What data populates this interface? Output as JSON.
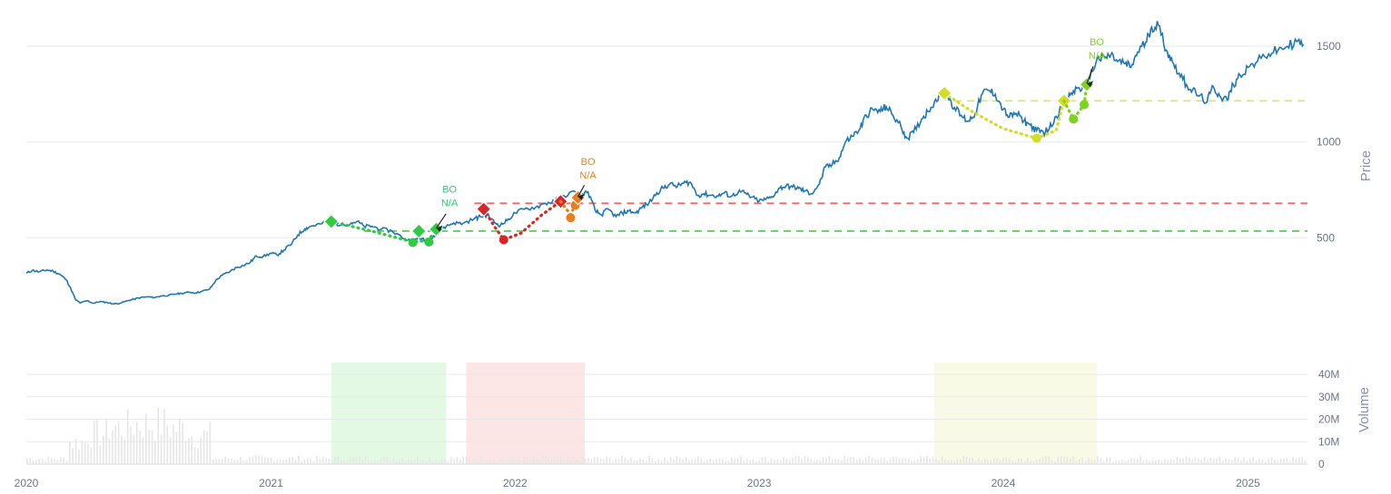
{
  "chart_data": {
    "type": "line",
    "price_axis": {
      "label": "Price",
      "ticks": [
        500,
        1000,
        1500
      ],
      "ylim": [
        0,
        1800
      ]
    },
    "volume_axis": {
      "label": "Volume",
      "ticks": [
        {
          "value": 0,
          "label": "0"
        },
        {
          "value": 10000000,
          "label": "10M"
        },
        {
          "value": 20000000,
          "label": "20M"
        },
        {
          "value": 30000000,
          "label": "30M"
        },
        {
          "value": 40000000,
          "label": "40M"
        }
      ],
      "ylim": [
        0,
        40000000
      ]
    },
    "x_axis": {
      "ticks": [
        "2020",
        "2021",
        "2022",
        "2023",
        "2024",
        "2025"
      ],
      "xlim": [
        "2020-01-01",
        "2025-03-31"
      ]
    },
    "grid": true,
    "colors": {
      "price_line": "#1f77b4",
      "green": "#2ecc40",
      "teal": "#2ecc71",
      "red": "#d62728",
      "orange": "#e67e22",
      "yellow": "#d4dc2a",
      "lime": "#7ed321",
      "volume_bar": "#e6e6e6"
    },
    "price_series": [
      [
        "2020-01-01",
        315
      ],
      [
        "2020-01-10",
        330
      ],
      [
        "2020-01-20",
        322
      ],
      [
        "2020-02-01",
        332
      ],
      [
        "2020-02-10",
        326
      ],
      [
        "2020-02-20",
        310
      ],
      [
        "2020-03-01",
        280
      ],
      [
        "2020-03-08",
        230
      ],
      [
        "2020-03-15",
        175
      ],
      [
        "2020-03-22",
        160
      ],
      [
        "2020-04-01",
        172
      ],
      [
        "2020-04-10",
        158
      ],
      [
        "2020-04-20",
        167
      ],
      [
        "2020-05-01",
        162
      ],
      [
        "2020-05-10",
        155
      ],
      [
        "2020-05-20",
        158
      ],
      [
        "2020-06-01",
        172
      ],
      [
        "2020-06-10",
        180
      ],
      [
        "2020-06-20",
        188
      ],
      [
        "2020-07-01",
        192
      ],
      [
        "2020-07-10",
        188
      ],
      [
        "2020-07-20",
        196
      ],
      [
        "2020-08-01",
        200
      ],
      [
        "2020-08-10",
        206
      ],
      [
        "2020-08-20",
        210
      ],
      [
        "2020-09-01",
        216
      ],
      [
        "2020-09-10",
        212
      ],
      [
        "2020-09-20",
        221
      ],
      [
        "2020-10-01",
        232
      ],
      [
        "2020-10-10",
        275
      ],
      [
        "2020-10-20",
        305
      ],
      [
        "2020-11-01",
        325
      ],
      [
        "2020-11-10",
        345
      ],
      [
        "2020-11-20",
        355
      ],
      [
        "2020-12-01",
        372
      ],
      [
        "2020-12-10",
        405
      ],
      [
        "2020-12-20",
        402
      ],
      [
        "2021-01-01",
        420
      ],
      [
        "2021-01-10",
        410
      ],
      [
        "2021-01-20",
        435
      ],
      [
        "2021-02-01",
        470
      ],
      [
        "2021-02-10",
        515
      ],
      [
        "2021-02-20",
        545
      ],
      [
        "2021-03-01",
        560
      ],
      [
        "2021-03-15",
        572
      ],
      [
        "2021-04-01",
        585
      ],
      [
        "2021-04-15",
        565
      ],
      [
        "2021-05-01",
        578
      ],
      [
        "2021-05-10",
        585
      ],
      [
        "2021-05-20",
        560
      ],
      [
        "2021-06-01",
        560
      ],
      [
        "2021-06-15",
        545
      ],
      [
        "2021-07-01",
        535
      ],
      [
        "2021-07-15",
        505
      ],
      [
        "2021-08-01",
        478
      ],
      [
        "2021-08-10",
        500
      ],
      [
        "2021-08-20",
        485
      ],
      [
        "2021-09-01",
        510
      ],
      [
        "2021-09-10",
        540
      ],
      [
        "2021-09-20",
        560
      ],
      [
        "2021-10-01",
        578
      ],
      [
        "2021-10-15",
        575
      ],
      [
        "2021-11-01",
        600
      ],
      [
        "2021-11-10",
        610
      ],
      [
        "2021-11-20",
        620
      ],
      [
        "2021-12-01",
        580
      ],
      [
        "2021-12-10",
        565
      ],
      [
        "2021-12-20",
        590
      ],
      [
        "2022-01-01",
        630
      ],
      [
        "2022-01-15",
        650
      ],
      [
        "2022-02-01",
        660
      ],
      [
        "2022-02-15",
        680
      ],
      [
        "2022-03-01",
        690
      ],
      [
        "2022-03-15",
        720
      ],
      [
        "2022-04-01",
        740
      ],
      [
        "2022-04-10",
        720
      ],
      [
        "2022-04-20",
        740
      ],
      [
        "2022-05-01",
        640
      ],
      [
        "2022-05-10",
        620
      ],
      [
        "2022-05-20",
        650
      ],
      [
        "2022-06-01",
        610
      ],
      [
        "2022-06-10",
        630
      ],
      [
        "2022-06-20",
        640
      ],
      [
        "2022-07-01",
        630
      ],
      [
        "2022-07-10",
        660
      ],
      [
        "2022-07-20",
        680
      ],
      [
        "2022-08-01",
        735
      ],
      [
        "2022-08-10",
        760
      ],
      [
        "2022-08-20",
        780
      ],
      [
        "2022-09-01",
        770
      ],
      [
        "2022-09-10",
        785
      ],
      [
        "2022-09-20",
        790
      ],
      [
        "2022-10-01",
        720
      ],
      [
        "2022-10-10",
        730
      ],
      [
        "2022-10-20",
        722
      ],
      [
        "2022-11-01",
        718
      ],
      [
        "2022-11-10",
        735
      ],
      [
        "2022-11-20",
        715
      ],
      [
        "2022-12-01",
        740
      ],
      [
        "2022-12-10",
        735
      ],
      [
        "2022-12-20",
        712
      ],
      [
        "2023-01-01",
        692
      ],
      [
        "2023-01-10",
        700
      ],
      [
        "2023-01-20",
        715
      ],
      [
        "2023-02-01",
        760
      ],
      [
        "2023-02-10",
        770
      ],
      [
        "2023-02-20",
        765
      ],
      [
        "2023-03-01",
        758
      ],
      [
        "2023-03-10",
        745
      ],
      [
        "2023-03-20",
        730
      ],
      [
        "2023-04-01",
        780
      ],
      [
        "2023-04-10",
        870
      ],
      [
        "2023-04-20",
        880
      ],
      [
        "2023-05-01",
        920
      ],
      [
        "2023-05-10",
        1000
      ],
      [
        "2023-05-20",
        1030
      ],
      [
        "2023-06-01",
        1070
      ],
      [
        "2023-06-10",
        1140
      ],
      [
        "2023-06-20",
        1170
      ],
      [
        "2023-07-01",
        1160
      ],
      [
        "2023-07-10",
        1185
      ],
      [
        "2023-07-20",
        1140
      ],
      [
        "2023-08-01",
        1080
      ],
      [
        "2023-08-10",
        1020
      ],
      [
        "2023-08-20",
        1050
      ],
      [
        "2023-09-01",
        1120
      ],
      [
        "2023-09-10",
        1160
      ],
      [
        "2023-09-20",
        1210
      ],
      [
        "2023-10-01",
        1250
      ],
      [
        "2023-10-10",
        1240
      ],
      [
        "2023-10-20",
        1180
      ],
      [
        "2023-11-01",
        1130
      ],
      [
        "2023-11-10",
        1110
      ],
      [
        "2023-11-20",
        1150
      ],
      [
        "2023-12-01",
        1255
      ],
      [
        "2023-12-10",
        1270
      ],
      [
        "2023-12-20",
        1250
      ],
      [
        "2024-01-01",
        1170
      ],
      [
        "2024-01-10",
        1130
      ],
      [
        "2024-01-20",
        1150
      ],
      [
        "2024-02-01",
        1110
      ],
      [
        "2024-02-10",
        1090
      ],
      [
        "2024-02-20",
        1060
      ],
      [
        "2024-03-01",
        1050
      ],
      [
        "2024-03-10",
        1070
      ],
      [
        "2024-03-20",
        1135
      ],
      [
        "2024-04-01",
        1200
      ],
      [
        "2024-04-10",
        1245
      ],
      [
        "2024-04-20",
        1280
      ],
      [
        "2024-05-01",
        1285
      ],
      [
        "2024-05-10",
        1340
      ],
      [
        "2024-05-20",
        1430
      ],
      [
        "2024-06-01",
        1440
      ],
      [
        "2024-06-10",
        1455
      ],
      [
        "2024-06-20",
        1420
      ],
      [
        "2024-07-01",
        1410
      ],
      [
        "2024-07-10",
        1390
      ],
      [
        "2024-07-20",
        1470
      ],
      [
        "2024-08-01",
        1520
      ],
      [
        "2024-08-10",
        1600
      ],
      [
        "2024-08-20",
        1610
      ],
      [
        "2024-09-01",
        1480
      ],
      [
        "2024-09-10",
        1420
      ],
      [
        "2024-09-20",
        1360
      ],
      [
        "2024-10-01",
        1300
      ],
      [
        "2024-10-10",
        1270
      ],
      [
        "2024-10-20",
        1240
      ],
      [
        "2024-11-01",
        1210
      ],
      [
        "2024-11-10",
        1290
      ],
      [
        "2024-11-20",
        1240
      ],
      [
        "2024-12-01",
        1220
      ],
      [
        "2024-12-10",
        1300
      ],
      [
        "2024-12-20",
        1350
      ],
      [
        "2025-01-01",
        1390
      ],
      [
        "2025-01-15",
        1420
      ],
      [
        "2025-02-01",
        1460
      ],
      [
        "2025-02-15",
        1480
      ],
      [
        "2025-03-01",
        1500
      ],
      [
        "2025-03-15",
        1525
      ],
      [
        "2025-03-25",
        1510
      ]
    ],
    "levels": [
      {
        "name": "red-level",
        "value": 680,
        "color": "#ef6b6b",
        "from": "2021-11-01",
        "to": "2025-03-31"
      },
      {
        "name": "green-level",
        "value": 535,
        "color": "#5fd35f",
        "from": "2021-05-20",
        "to": "2025-03-31"
      },
      {
        "name": "yellow-level",
        "value": 1215,
        "color": "#e2e36a",
        "from": "2023-10-20",
        "to": "2025-03-31"
      }
    ],
    "patterns": [
      {
        "name": "pattern-green",
        "color": "#2ecc40",
        "arc_color": "#2ecc40",
        "path": [
          [
            "2021-04-01",
            585
          ],
          [
            "2021-06-01",
            535
          ],
          [
            "2021-08-01",
            478
          ],
          [
            "2021-08-20",
            485
          ],
          [
            "2021-09-10",
            540
          ]
        ],
        "diamonds": [
          [
            "2021-04-01",
            585
          ],
          [
            "2021-08-10",
            535
          ],
          [
            "2021-09-05",
            545
          ]
        ],
        "dots": [
          [
            "2021-08-01",
            475
          ],
          [
            "2021-08-25",
            478
          ]
        ],
        "label": "BO",
        "sublabel": "N/A",
        "label_at": [
          "2021-09-25",
          735
        ],
        "label_color": "#2ecc71",
        "arrow_from": [
          "2021-09-25",
          625
        ],
        "arrow_to": [
          "2021-09-05",
          550
        ]
      },
      {
        "name": "pattern-red",
        "color": "#d62728",
        "arc_color": "#d62728",
        "path": [
          [
            "2021-11-15",
            650
          ],
          [
            "2021-12-01",
            560
          ],
          [
            "2021-12-15",
            490
          ],
          [
            "2022-01-10",
            525
          ],
          [
            "2022-02-10",
            620
          ],
          [
            "2022-03-10",
            690
          ]
        ],
        "diamonds": [
          [
            "2021-11-15",
            650
          ],
          [
            "2022-03-10",
            690
          ]
        ],
        "dots": [
          [
            "2021-12-15",
            490
          ]
        ],
        "label": "",
        "sublabel": "",
        "label_at": null,
        "label_color": "",
        "arrow_from": null,
        "arrow_to": null
      },
      {
        "name": "pattern-orange",
        "color": "#e67e22",
        "arc_color": "#e67e22",
        "path": [
          [
            "2022-03-10",
            690
          ],
          [
            "2022-03-25",
            620
          ],
          [
            "2022-04-05",
            705
          ]
        ],
        "diamonds": [
          [
            "2022-04-05",
            710
          ]
        ],
        "dots": [
          [
            "2022-03-25",
            605
          ],
          [
            "2022-04-01",
            670
          ]
        ],
        "label": "BO",
        "sublabel": "N/A",
        "label_at": [
          "2022-04-20",
          880
        ],
        "label_color": "#e67e22",
        "arrow_from": [
          "2022-04-20",
          775
        ],
        "arrow_to": [
          "2022-04-05",
          715
        ]
      },
      {
        "name": "pattern-yellow",
        "color": "#d4dc2a",
        "arc_color": "#d4dc2a",
        "path": [
          [
            "2023-10-05",
            1255
          ],
          [
            "2023-11-15",
            1160
          ],
          [
            "2024-01-01",
            1070
          ],
          [
            "2024-02-20",
            1020
          ],
          [
            "2024-03-20",
            1060
          ],
          [
            "2024-04-01",
            1215
          ]
        ],
        "diamonds": [
          [
            "2023-10-05",
            1255
          ],
          [
            "2024-04-01",
            1215
          ]
        ],
        "dots": [
          [
            "2024-02-20",
            1020
          ]
        ],
        "label": "",
        "sublabel": "",
        "label_at": null,
        "label_color": "",
        "arrow_from": null,
        "arrow_to": null
      },
      {
        "name": "pattern-lime",
        "color": "#7ed321",
        "arc_color": "#7ed321",
        "path": [
          [
            "2024-04-01",
            1215
          ],
          [
            "2024-04-15",
            1120
          ],
          [
            "2024-05-01",
            1195
          ],
          [
            "2024-05-05",
            1300
          ]
        ],
        "diamonds": [
          [
            "2024-05-05",
            1300
          ]
        ],
        "dots": [
          [
            "2024-04-15",
            1120
          ],
          [
            "2024-05-01",
            1195
          ]
        ],
        "label": "BO",
        "sublabel": "N/A",
        "label_at": [
          "2024-05-20",
          1505
        ],
        "label_color": "#7ed321",
        "arrow_from": [
          "2024-05-20",
          1395
        ],
        "arrow_to": [
          "2024-05-05",
          1305
        ]
      }
    ],
    "highlight_windows": [
      {
        "name": "window-green",
        "from": "2021-04-01",
        "to": "2021-09-20",
        "color": "#e3f9e3"
      },
      {
        "name": "window-red",
        "from": "2021-10-20",
        "to": "2022-04-15",
        "color": "#fbe5e5"
      },
      {
        "name": "window-yellow",
        "from": "2023-09-20",
        "to": "2024-05-20",
        "color": "#f8fae6"
      }
    ]
  }
}
